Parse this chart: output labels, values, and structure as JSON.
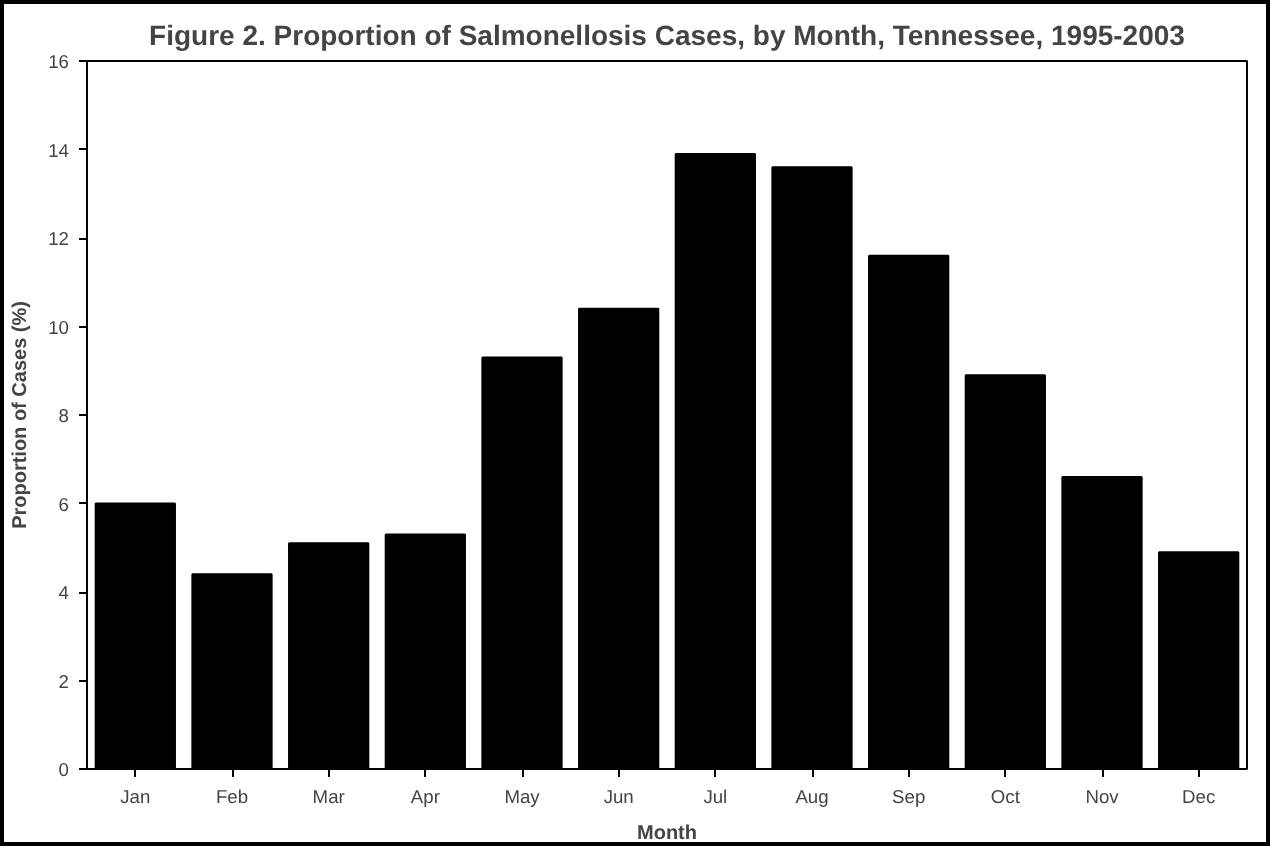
{
  "chart_data": {
    "type": "bar",
    "title": "Figure 2. Proportion of Salmonellosis Cases, by Month, Tennessee, 1995-2003",
    "xlabel": "Month",
    "ylabel": "Proportion of Cases (%)",
    "categories": [
      "Jan",
      "Feb",
      "Mar",
      "Apr",
      "May",
      "Jun",
      "Jul",
      "Aug",
      "Sep",
      "Oct",
      "Nov",
      "Dec"
    ],
    "values": [
      6.0,
      4.4,
      5.1,
      5.3,
      9.3,
      10.4,
      13.9,
      13.6,
      11.6,
      8.9,
      6.6,
      4.9
    ],
    "color": "#000000",
    "ylim": [
      0,
      16
    ],
    "yticks": [
      0,
      2,
      4,
      6,
      8,
      10,
      12,
      14,
      16
    ],
    "grid": false
  }
}
